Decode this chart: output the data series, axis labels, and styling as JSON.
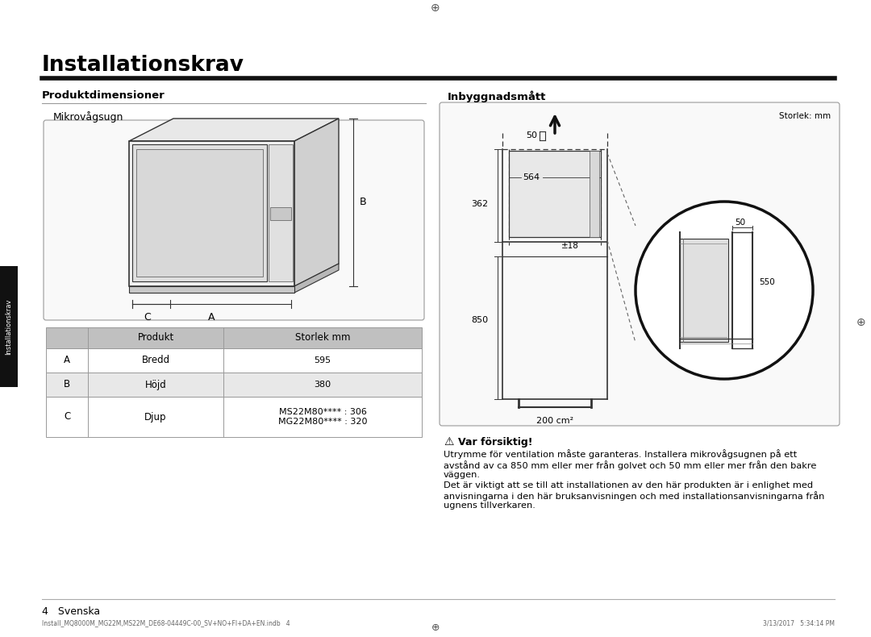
{
  "title": "Installationskrav",
  "section_left": "Produktdimensioner",
  "section_right": "Inbyggnadsmått",
  "subsection_left": "Mikrovågsugn",
  "table_header": [
    "Produkt",
    "Storlek mm"
  ],
  "table_rows": [
    [
      "A",
      "Bredd",
      "595"
    ],
    [
      "B",
      "Höjd",
      "380"
    ],
    [
      "C",
      "Djup",
      "MS22M80**** : 306\nMG22M80**** : 320"
    ]
  ],
  "warning_title": "Var försiktig!",
  "warning_text1": "Utrymme för ventilation måste garanteras. Installera mikrovågsugnen på ett\navstånd av ca 850 mm eller mer från golvet och 50 mm eller mer från den bakre\nväggen.",
  "warning_text2": "Det är viktigt att se till att installationen av den här produkten är i enlighet med\nanvisningarna i den här bruksanvisningen och med installationsanvisningarna från\nugnens tillverkaren.",
  "footer_left": "4   Svenska",
  "footer_file": "Install_MQ8000M_MG22M,MS22M_DE68-04449C-00_SV+NO+FI+DA+EN.indb   4",
  "footer_date": "3/13/2017   5:34:14 PM",
  "storlek_label": "Storlek: mm",
  "bg_color": "#FFFFFF",
  "text_color": "#000000",
  "table_header_bg": "#C0C0C0",
  "table_row_bg_alt": "#E8E8E8",
  "line_color": "#333333",
  "border_color": "#999999"
}
